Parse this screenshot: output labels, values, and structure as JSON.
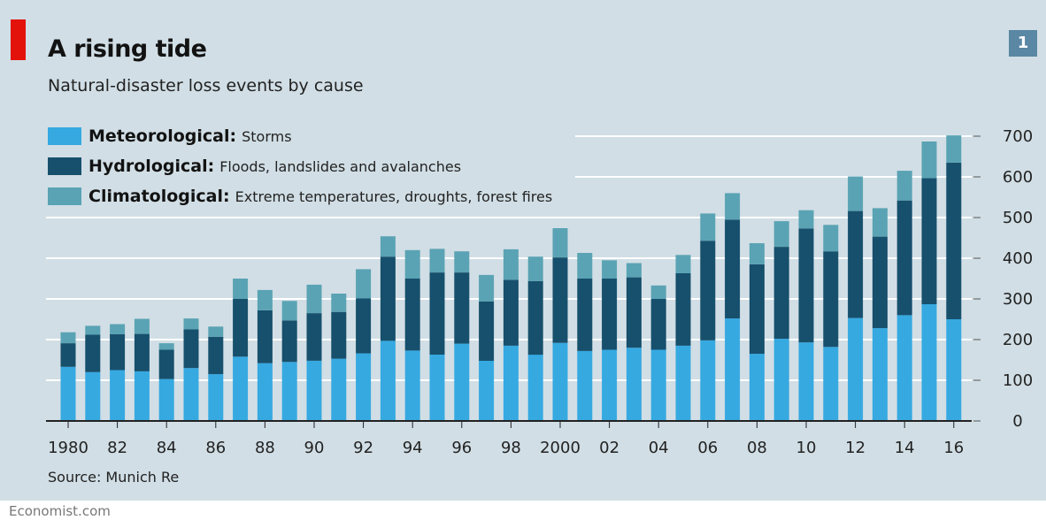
{
  "header": {
    "title": "A rising tide",
    "subtitle": "Natural-disaster loss events by cause",
    "chart_number": "1"
  },
  "legend": [
    {
      "name": "Meteorological:",
      "description": "Storms",
      "color": "#36a9e1"
    },
    {
      "name": "Hydrological:",
      "description": "Floods, landslides and avalanches",
      "color": "#17506d"
    },
    {
      "name": "Climatological:",
      "description": "Extreme temperatures, droughts, forest fires",
      "color": "#5aa3b4"
    }
  ],
  "source": "Source: Munich Re",
  "footer": "Economist.com",
  "colors": {
    "background": "#d1dee5",
    "accent_red": "#e3120b",
    "badge": "#5a87a3"
  },
  "chart_data": {
    "type": "bar",
    "stacked": true,
    "title": "A rising tide",
    "subtitle": "Natural-disaster loss events by cause",
    "categories": [
      "1980",
      "1981",
      "1982",
      "1983",
      "1984",
      "1985",
      "1986",
      "1987",
      "1988",
      "1989",
      "1990",
      "1991",
      "1992",
      "1993",
      "1994",
      "1995",
      "1996",
      "1997",
      "1998",
      "1999",
      "2000",
      "2001",
      "2002",
      "2003",
      "2004",
      "2005",
      "2006",
      "2007",
      "2008",
      "2009",
      "2010",
      "2011",
      "2012",
      "2013",
      "2014",
      "2015",
      "2016"
    ],
    "x_tick_labels": [
      "1980",
      "82",
      "84",
      "86",
      "88",
      "90",
      "92",
      "94",
      "96",
      "98",
      "2000",
      "02",
      "04",
      "06",
      "08",
      "10",
      "12",
      "14",
      "16"
    ],
    "series": [
      {
        "name": "Meteorological",
        "color": "#36a9e1",
        "values": [
          133,
          120,
          125,
          122,
          103,
          130,
          115,
          158,
          142,
          145,
          148,
          153,
          166,
          197,
          173,
          163,
          190,
          148,
          185,
          163,
          192,
          172,
          175,
          180,
          175,
          185,
          198,
          252,
          165,
          202,
          193,
          182,
          253,
          228,
          260,
          287,
          250
        ]
      },
      {
        "name": "Hydrological",
        "color": "#17506d",
        "values": [
          58,
          92,
          88,
          92,
          72,
          95,
          92,
          142,
          130,
          102,
          117,
          115,
          135,
          207,
          177,
          202,
          175,
          146,
          162,
          181,
          210,
          178,
          175,
          173,
          125,
          178,
          245,
          243,
          220,
          226,
          280,
          235,
          263,
          225,
          282,
          310,
          385
        ]
      },
      {
        "name": "Climatological",
        "color": "#5aa3b4",
        "values": [
          27,
          22,
          25,
          37,
          16,
          27,
          25,
          50,
          50,
          48,
          70,
          45,
          72,
          50,
          70,
          58,
          52,
          65,
          75,
          60,
          72,
          63,
          45,
          35,
          33,
          45,
          67,
          65,
          52,
          63,
          45,
          65,
          85,
          70,
          73,
          90,
          67
        ]
      }
    ],
    "ylim": [
      0,
      700
    ],
    "yticks": [
      0,
      100,
      200,
      300,
      400,
      500,
      600,
      700
    ],
    "y_axis_side": "right",
    "grid": true,
    "legend_position": "top-left",
    "xlabel": "",
    "ylabel": ""
  }
}
